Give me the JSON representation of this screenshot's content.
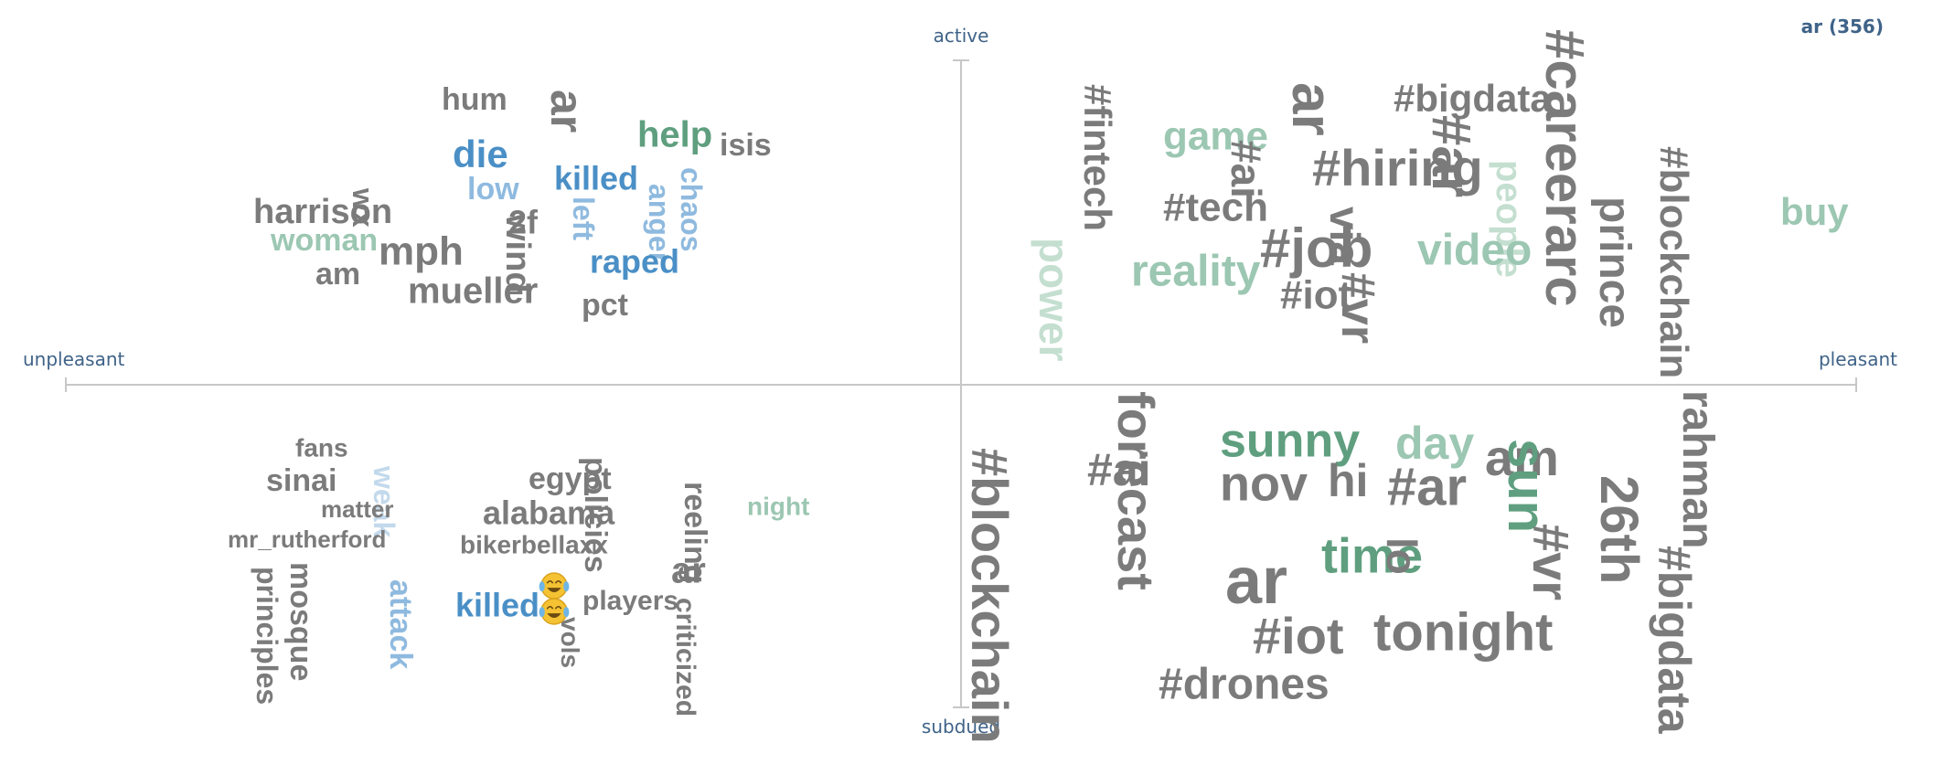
{
  "colors": {
    "neutral": "#7b7b7b",
    "blue_strong": "#4a8fc6",
    "blue_light": "#8fbadf",
    "blue_pale": "#c3d9ec",
    "green_strong": "#5f9f7f",
    "green_light": "#9cc7b2",
    "green_pale": "#c4dfd0",
    "axis": "#c7c7c7",
    "axis_text": "#3f6388"
  },
  "header": {
    "term_count": "ar (356)"
  },
  "chart_data": {
    "type": "wordcloud",
    "axes": {
      "x": {
        "left": "unpleasant",
        "right": "pleasant"
      },
      "y": {
        "top": "active",
        "bottom": "subdued"
      }
    },
    "quadrants": [
      {
        "name": "unpleasant-active",
        "words": [
          {
            "text": "hum",
            "tone": "neutral"
          },
          {
            "text": "ar",
            "tone": "neutral"
          },
          {
            "text": "help",
            "tone": "green_strong"
          },
          {
            "text": "isis",
            "tone": "neutral"
          },
          {
            "text": "die",
            "tone": "blue_strong"
          },
          {
            "text": "killed",
            "tone": "blue_strong"
          },
          {
            "text": "low",
            "tone": "blue_light"
          },
          {
            "text": "chaos",
            "tone": "blue_light"
          },
          {
            "text": "anger",
            "tone": "blue_light"
          },
          {
            "text": "left",
            "tone": "blue_light"
          },
          {
            "text": "harrison",
            "tone": "neutral"
          },
          {
            "text": "wx",
            "tone": "neutral"
          },
          {
            "text": "2f",
            "tone": "neutral"
          },
          {
            "text": "wind",
            "tone": "neutral"
          },
          {
            "text": "woman",
            "tone": "green_light"
          },
          {
            "text": "mph",
            "tone": "neutral"
          },
          {
            "text": "raped",
            "tone": "blue_strong"
          },
          {
            "text": "am",
            "tone": "neutral"
          },
          {
            "text": "mueller",
            "tone": "neutral"
          },
          {
            "text": "pct",
            "tone": "neutral"
          }
        ]
      },
      {
        "name": "pleasant-active",
        "words": [
          {
            "text": "#fintech",
            "tone": "neutral"
          },
          {
            "text": "game",
            "tone": "green_light"
          },
          {
            "text": "ar",
            "tone": "neutral"
          },
          {
            "text": "#bigdata",
            "tone": "neutral"
          },
          {
            "text": "#careerarc",
            "tone": "neutral"
          },
          {
            "text": "#ai",
            "tone": "neutral"
          },
          {
            "text": "#hiring",
            "tone": "neutral"
          },
          {
            "text": "#ar",
            "tone": "neutral"
          },
          {
            "text": "people",
            "tone": "green_pale"
          },
          {
            "text": "prince",
            "tone": "neutral"
          },
          {
            "text": "#blockchain",
            "tone": "neutral"
          },
          {
            "text": "buy",
            "tone": "green_light"
          },
          {
            "text": "#tech",
            "tone": "neutral"
          },
          {
            "text": "power",
            "tone": "green_pale"
          },
          {
            "text": "reality",
            "tone": "green_light"
          },
          {
            "text": "#job",
            "tone": "neutral"
          },
          {
            "text": "via",
            "tone": "neutral"
          },
          {
            "text": "video",
            "tone": "green_light"
          },
          {
            "text": "#iot",
            "tone": "neutral"
          },
          {
            "text": "#vr",
            "tone": "neutral"
          }
        ]
      },
      {
        "name": "unpleasant-subdued",
        "words": [
          {
            "text": "fans",
            "tone": "neutral"
          },
          {
            "text": "sinai",
            "tone": "neutral"
          },
          {
            "text": "weak",
            "tone": "blue_pale"
          },
          {
            "text": "matter",
            "tone": "neutral"
          },
          {
            "text": "mr_rutherford",
            "tone": "neutral"
          },
          {
            "text": "egypt",
            "tone": "neutral"
          },
          {
            "text": "alabama",
            "tone": "neutral"
          },
          {
            "text": "bikerbellaxx",
            "tone": "neutral"
          },
          {
            "text": "policies",
            "tone": "neutral"
          },
          {
            "text": "reeling",
            "tone": "neutral"
          },
          {
            "text": "night",
            "tone": "green_light"
          },
          {
            "text": "ar",
            "tone": "neutral"
          },
          {
            "text": "principles",
            "tone": "neutral"
          },
          {
            "text": "mosque",
            "tone": "neutral"
          },
          {
            "text": "attack",
            "tone": "blue_light"
          },
          {
            "text": "killed",
            "tone": "blue_strong"
          },
          {
            "text": "players",
            "tone": "neutral"
          },
          {
            "text": "vols",
            "tone": "neutral"
          },
          {
            "text": "criticized",
            "tone": "neutral"
          }
        ],
        "emoji": [
          {
            "name": "crying-laughing-emoji-icon"
          },
          {
            "name": "crying-laughing-emoji-icon"
          }
        ]
      },
      {
        "name": "pleasant-subdued",
        "words": [
          {
            "text": "#blockchain",
            "tone": "neutral"
          },
          {
            "text": "#ai",
            "tone": "neutral"
          },
          {
            "text": "forecast",
            "tone": "neutral"
          },
          {
            "text": "sunny",
            "tone": "green_strong"
          },
          {
            "text": "nov",
            "tone": "neutral"
          },
          {
            "text": "day",
            "tone": "green_light"
          },
          {
            "text": "am",
            "tone": "neutral"
          },
          {
            "text": "sun",
            "tone": "green_strong"
          },
          {
            "text": "rahman",
            "tone": "neutral"
          },
          {
            "text": "hi",
            "tone": "neutral"
          },
          {
            "text": "#ar",
            "tone": "neutral"
          },
          {
            "text": "26th",
            "tone": "neutral"
          },
          {
            "text": "time",
            "tone": "green_strong"
          },
          {
            "text": "lo",
            "tone": "neutral"
          },
          {
            "text": "#vr",
            "tone": "neutral"
          },
          {
            "text": "#bigdata",
            "tone": "neutral"
          },
          {
            "text": "ar",
            "tone": "neutral"
          },
          {
            "text": "#iot",
            "tone": "neutral"
          },
          {
            "text": "tonight",
            "tone": "neutral"
          },
          {
            "text": "#drones",
            "tone": "neutral"
          }
        ]
      }
    ]
  }
}
